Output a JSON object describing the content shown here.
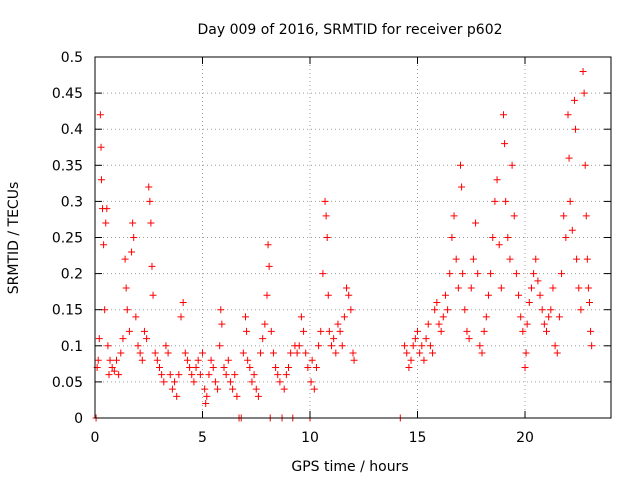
{
  "chart_data": {
    "type": "scatter",
    "title": "Day 009 of 2016, SRMTID for receiver p602",
    "xlabel": "GPS time / hours",
    "ylabel": "SRMTID / TECUs",
    "xlim": [
      0,
      24
    ],
    "ylim": [
      0,
      0.5
    ],
    "x_ticks": [
      0,
      5,
      10,
      15,
      20
    ],
    "x_tick_labels": [
      "0",
      "5",
      "10",
      "15",
      "20"
    ],
    "y_ticks": [
      0,
      0.05,
      0.1,
      0.15,
      0.2,
      0.25,
      0.3,
      0.35,
      0.4,
      0.45,
      0.5
    ],
    "y_tick_labels": [
      "0",
      "0.05",
      "0.1",
      "0.15",
      "0.2",
      "0.25",
      "0.3",
      "0.35",
      "0.4",
      "0.45",
      "0.5"
    ],
    "grid": true,
    "marker": "+",
    "color": "#ff0000",
    "series": [
      {
        "name": "SRMTID",
        "points": [
          [
            0.05,
            0.0
          ],
          [
            0.1,
            0.07
          ],
          [
            0.15,
            0.08
          ],
          [
            0.2,
            0.11
          ],
          [
            0.25,
            0.42
          ],
          [
            0.28,
            0.375
          ],
          [
            0.3,
            0.33
          ],
          [
            0.35,
            0.29
          ],
          [
            0.4,
            0.24
          ],
          [
            0.45,
            0.15
          ],
          [
            0.5,
            0.27
          ],
          [
            0.55,
            0.29
          ],
          [
            0.6,
            0.1
          ],
          [
            0.65,
            0.06
          ],
          [
            0.7,
            0.08
          ],
          [
            0.8,
            0.07
          ],
          [
            0.9,
            0.065
          ],
          [
            1.0,
            0.08
          ],
          [
            1.1,
            0.06
          ],
          [
            1.2,
            0.09
          ],
          [
            1.3,
            0.11
          ],
          [
            1.4,
            0.22
          ],
          [
            1.45,
            0.18
          ],
          [
            1.5,
            0.15
          ],
          [
            1.6,
            0.12
          ],
          [
            1.7,
            0.23
          ],
          [
            1.75,
            0.27
          ],
          [
            1.8,
            0.25
          ],
          [
            1.9,
            0.14
          ],
          [
            2.0,
            0.1
          ],
          [
            2.1,
            0.09
          ],
          [
            2.2,
            0.08
          ],
          [
            2.3,
            0.12
          ],
          [
            2.4,
            0.11
          ],
          [
            2.5,
            0.32
          ],
          [
            2.55,
            0.3
          ],
          [
            2.6,
            0.27
          ],
          [
            2.65,
            0.21
          ],
          [
            2.7,
            0.17
          ],
          [
            2.8,
            0.09
          ],
          [
            2.9,
            0.08
          ],
          [
            3.0,
            0.07
          ],
          [
            3.1,
            0.06
          ],
          [
            3.2,
            0.05
          ],
          [
            3.3,
            0.1
          ],
          [
            3.4,
            0.09
          ],
          [
            3.5,
            0.06
          ],
          [
            3.6,
            0.04
          ],
          [
            3.7,
            0.05
          ],
          [
            3.8,
            0.03
          ],
          [
            3.9,
            0.06
          ],
          [
            4.0,
            0.14
          ],
          [
            4.1,
            0.16
          ],
          [
            4.2,
            0.09
          ],
          [
            4.3,
            0.08
          ],
          [
            4.4,
            0.07
          ],
          [
            4.5,
            0.06
          ],
          [
            4.6,
            0.05
          ],
          [
            4.7,
            0.07
          ],
          [
            4.8,
            0.08
          ],
          [
            4.9,
            0.06
          ],
          [
            5.0,
            0.09
          ],
          [
            5.1,
            0.04
          ],
          [
            5.15,
            0.02
          ],
          [
            5.2,
            0.03
          ],
          [
            5.3,
            0.06
          ],
          [
            5.4,
            0.08
          ],
          [
            5.5,
            0.07
          ],
          [
            5.6,
            0.05
          ],
          [
            5.7,
            0.04
          ],
          [
            5.8,
            0.1
          ],
          [
            5.85,
            0.15
          ],
          [
            5.9,
            0.13
          ],
          [
            6.0,
            0.07
          ],
          [
            6.1,
            0.06
          ],
          [
            6.2,
            0.08
          ],
          [
            6.3,
            0.05
          ],
          [
            6.4,
            0.04
          ],
          [
            6.5,
            0.06
          ],
          [
            6.6,
            0.03
          ],
          [
            6.7,
            0.0
          ],
          [
            6.8,
            0.0
          ],
          [
            6.9,
            0.09
          ],
          [
            7.0,
            0.14
          ],
          [
            7.05,
            0.12
          ],
          [
            7.1,
            0.08
          ],
          [
            7.2,
            0.07
          ],
          [
            7.3,
            0.05
          ],
          [
            7.4,
            0.06
          ],
          [
            7.5,
            0.04
          ],
          [
            7.6,
            0.03
          ],
          [
            7.7,
            0.09
          ],
          [
            7.8,
            0.11
          ],
          [
            7.9,
            0.13
          ],
          [
            8.0,
            0.17
          ],
          [
            8.05,
            0.24
          ],
          [
            8.1,
            0.21
          ],
          [
            8.15,
            0.0
          ],
          [
            8.2,
            0.12
          ],
          [
            8.3,
            0.09
          ],
          [
            8.4,
            0.07
          ],
          [
            8.5,
            0.06
          ],
          [
            8.6,
            0.05
          ],
          [
            8.7,
            0.0
          ],
          [
            8.8,
            0.04
          ],
          [
            8.9,
            0.06
          ],
          [
            9.0,
            0.07
          ],
          [
            9.1,
            0.09
          ],
          [
            9.2,
            0.0
          ],
          [
            9.3,
            0.1
          ],
          [
            9.4,
            0.09
          ],
          [
            9.5,
            0.1
          ],
          [
            9.6,
            0.14
          ],
          [
            9.7,
            0.12
          ],
          [
            9.8,
            0.09
          ],
          [
            9.9,
            0.07
          ],
          [
            10.0,
            0.0
          ],
          [
            10.05,
            0.05
          ],
          [
            10.1,
            0.08
          ],
          [
            10.2,
            0.04
          ],
          [
            10.3,
            0.07
          ],
          [
            10.4,
            0.1
          ],
          [
            10.5,
            0.12
          ],
          [
            10.6,
            0.2
          ],
          [
            10.7,
            0.3
          ],
          [
            10.75,
            0.28
          ],
          [
            10.8,
            0.25
          ],
          [
            10.85,
            0.17
          ],
          [
            10.9,
            0.12
          ],
          [
            11.0,
            0.1
          ],
          [
            11.1,
            0.11
          ],
          [
            11.2,
            0.09
          ],
          [
            11.3,
            0.13
          ],
          [
            11.4,
            0.12
          ],
          [
            11.5,
            0.1
          ],
          [
            11.6,
            0.14
          ],
          [
            11.7,
            0.18
          ],
          [
            11.8,
            0.17
          ],
          [
            11.9,
            0.15
          ],
          [
            12.0,
            0.09
          ],
          [
            12.05,
            0.08
          ],
          [
            14.2,
            0.0
          ],
          [
            14.4,
            0.1
          ],
          [
            14.5,
            0.09
          ],
          [
            14.6,
            0.07
          ],
          [
            14.7,
            0.08
          ],
          [
            14.8,
            0.1
          ],
          [
            14.9,
            0.11
          ],
          [
            15.0,
            0.12
          ],
          [
            15.1,
            0.09
          ],
          [
            15.2,
            0.1
          ],
          [
            15.3,
            0.08
          ],
          [
            15.4,
            0.11
          ],
          [
            15.5,
            0.13
          ],
          [
            15.6,
            0.1
          ],
          [
            15.7,
            0.09
          ],
          [
            15.8,
            0.15
          ],
          [
            15.9,
            0.16
          ],
          [
            16.0,
            0.13
          ],
          [
            16.1,
            0.12
          ],
          [
            16.2,
            0.14
          ],
          [
            16.3,
            0.17
          ],
          [
            16.4,
            0.15
          ],
          [
            16.5,
            0.2
          ],
          [
            16.6,
            0.25
          ],
          [
            16.7,
            0.28
          ],
          [
            16.8,
            0.22
          ],
          [
            16.9,
            0.18
          ],
          [
            17.0,
            0.35
          ],
          [
            17.05,
            0.32
          ],
          [
            17.1,
            0.2
          ],
          [
            17.2,
            0.15
          ],
          [
            17.3,
            0.12
          ],
          [
            17.4,
            0.11
          ],
          [
            17.5,
            0.18
          ],
          [
            17.6,
            0.22
          ],
          [
            17.7,
            0.27
          ],
          [
            17.8,
            0.2
          ],
          [
            17.9,
            0.1
          ],
          [
            18.0,
            0.09
          ],
          [
            18.1,
            0.12
          ],
          [
            18.2,
            0.14
          ],
          [
            18.3,
            0.17
          ],
          [
            18.4,
            0.2
          ],
          [
            18.5,
            0.25
          ],
          [
            18.6,
            0.3
          ],
          [
            18.7,
            0.33
          ],
          [
            18.8,
            0.24
          ],
          [
            18.9,
            0.18
          ],
          [
            19.0,
            0.42
          ],
          [
            19.05,
            0.38
          ],
          [
            19.1,
            0.3
          ],
          [
            19.2,
            0.25
          ],
          [
            19.3,
            0.22
          ],
          [
            19.4,
            0.35
          ],
          [
            19.5,
            0.28
          ],
          [
            19.6,
            0.2
          ],
          [
            19.7,
            0.17
          ],
          [
            19.8,
            0.14
          ],
          [
            19.9,
            0.12
          ],
          [
            20.0,
            0.07
          ],
          [
            20.05,
            0.09
          ],
          [
            20.1,
            0.13
          ],
          [
            20.2,
            0.16
          ],
          [
            20.3,
            0.18
          ],
          [
            20.4,
            0.2
          ],
          [
            20.5,
            0.22
          ],
          [
            20.6,
            0.19
          ],
          [
            20.7,
            0.17
          ],
          [
            20.8,
            0.15
          ],
          [
            20.9,
            0.13
          ],
          [
            21.0,
            0.12
          ],
          [
            21.1,
            0.14
          ],
          [
            21.2,
            0.15
          ],
          [
            21.3,
            0.18
          ],
          [
            21.4,
            0.1
          ],
          [
            21.5,
            0.09
          ],
          [
            21.6,
            0.14
          ],
          [
            21.7,
            0.2
          ],
          [
            21.8,
            0.28
          ],
          [
            21.9,
            0.25
          ],
          [
            22.0,
            0.42
          ],
          [
            22.05,
            0.36
          ],
          [
            22.1,
            0.3
          ],
          [
            22.2,
            0.26
          ],
          [
            22.3,
            0.44
          ],
          [
            22.35,
            0.4
          ],
          [
            22.4,
            0.22
          ],
          [
            22.5,
            0.18
          ],
          [
            22.6,
            0.15
          ],
          [
            22.7,
            0.48
          ],
          [
            22.75,
            0.45
          ],
          [
            22.8,
            0.35
          ],
          [
            22.85,
            0.28
          ],
          [
            22.9,
            0.22
          ],
          [
            22.95,
            0.18
          ],
          [
            23.0,
            0.16
          ],
          [
            23.05,
            0.12
          ],
          [
            23.1,
            0.1
          ]
        ]
      }
    ]
  }
}
